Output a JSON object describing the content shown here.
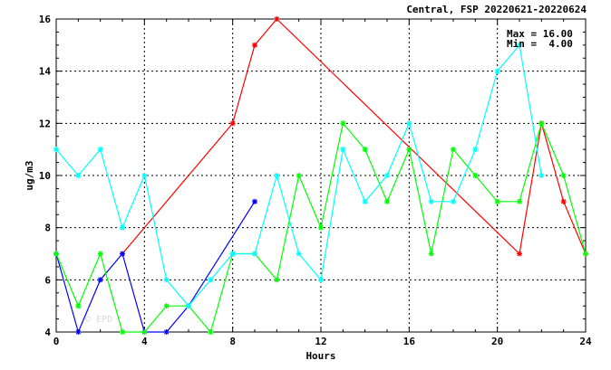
{
  "chart_data": {
    "type": "line",
    "title": "Central, FSP 20220621-20220624",
    "xlabel": "Hours",
    "ylabel": "ug/m3",
    "xlim": [
      0,
      24
    ],
    "ylim": [
      4,
      16
    ],
    "xticks": [
      0,
      4,
      8,
      12,
      16,
      20,
      24
    ],
    "yticks": [
      4,
      6,
      8,
      10,
      12,
      14,
      16
    ],
    "grid": true,
    "stats": {
      "max_label": "Max = 16.00",
      "min_label": "Min =  4.00"
    },
    "watermark": "© EPD",
    "series": [
      {
        "color": "#ff0000",
        "points": [
          [
            3,
            7
          ],
          [
            8,
            12
          ],
          [
            9,
            15
          ],
          [
            10,
            16
          ],
          [
            21,
            7
          ],
          [
            22,
            12
          ],
          [
            23,
            9
          ],
          [
            24,
            7
          ]
        ]
      },
      {
        "color": "#0000ff",
        "points": [
          [
            0,
            7
          ],
          [
            1,
            4
          ],
          [
            2,
            6
          ],
          [
            3,
            7
          ],
          [
            4,
            4
          ],
          [
            5,
            4
          ],
          [
            6,
            5
          ],
          [
            9,
            9
          ]
        ]
      },
      {
        "color": "#00ff00",
        "points": [
          [
            0,
            7
          ],
          [
            1,
            5
          ],
          [
            2,
            7
          ],
          [
            3,
            4
          ],
          [
            4,
            4
          ],
          [
            5,
            5
          ],
          [
            6,
            5
          ],
          [
            7,
            4
          ],
          [
            8,
            7
          ],
          [
            9,
            7
          ],
          [
            10,
            6
          ],
          [
            11,
            10
          ],
          [
            12,
            8
          ],
          [
            13,
            12
          ],
          [
            14,
            11
          ],
          [
            15,
            9
          ],
          [
            16,
            11
          ],
          [
            17,
            7
          ],
          [
            18,
            11
          ],
          [
            19,
            10
          ],
          [
            20,
            9
          ],
          [
            21,
            9
          ],
          [
            22,
            12
          ],
          [
            23,
            10
          ],
          [
            24,
            7
          ]
        ]
      },
      {
        "color": "#00ffff",
        "points": [
          [
            0,
            11
          ],
          [
            1,
            10
          ],
          [
            2,
            11
          ],
          [
            3,
            8
          ],
          [
            4,
            10
          ],
          [
            5,
            6
          ],
          [
            6,
            5
          ],
          [
            7,
            6
          ],
          [
            8,
            7
          ],
          [
            9,
            7
          ],
          [
            10,
            10
          ],
          [
            11,
            7
          ],
          [
            12,
            6
          ],
          [
            13,
            11
          ],
          [
            14,
            9
          ],
          [
            15,
            10
          ],
          [
            16,
            12
          ],
          [
            17,
            9
          ],
          [
            18,
            9
          ],
          [
            19,
            11
          ],
          [
            20,
            14
          ],
          [
            21,
            15
          ],
          [
            22,
            10
          ]
        ]
      }
    ]
  }
}
